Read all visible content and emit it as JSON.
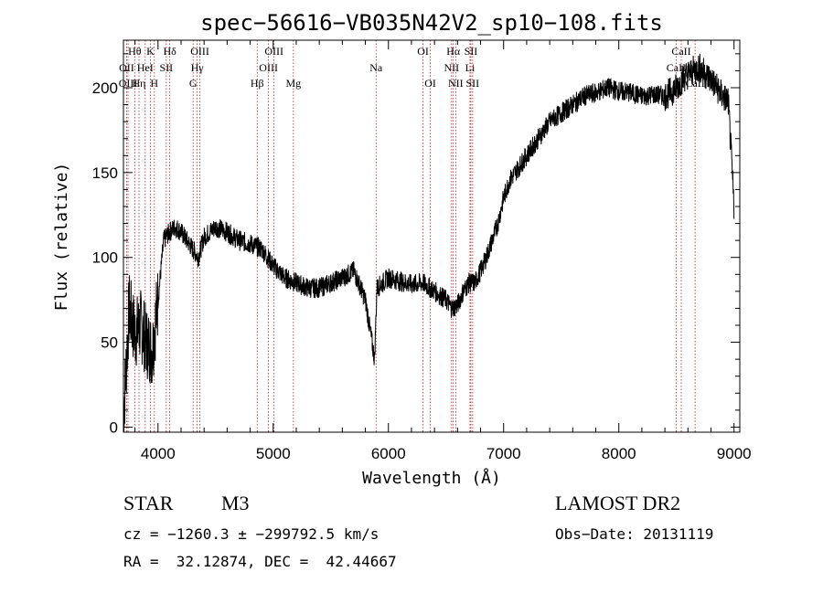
{
  "chart_data": {
    "type": "line",
    "title": "spec−56616−VB035N42V2_sp10−108.fits",
    "xlabel": "Wavelength (Å)",
    "ylabel": "Flux (relative)",
    "xlim": [
      3700,
      9050
    ],
    "ylim": [
      -3,
      228
    ],
    "xticks": [
      4000,
      5000,
      6000,
      7000,
      8000,
      9000
    ],
    "yticks": [
      0,
      50,
      100,
      150,
      200
    ],
    "grid": false,
    "legend": "none",
    "series": [
      {
        "x": [
          3700,
          3750,
          3800,
          3850,
          3900,
          3950,
          4000,
          4050,
          4100,
          4150,
          4200,
          4250,
          4300,
          4350,
          4400,
          4450,
          4500,
          4600,
          4700,
          4800,
          4900,
          5000,
          5100,
          5200,
          5300,
          5400,
          5500,
          5600,
          5700,
          5800,
          5880,
          5900,
          5950,
          6000,
          6100,
          6200,
          6300,
          6400,
          6500,
          6550,
          6600,
          6650,
          6700,
          6750,
          6800,
          6850,
          6900,
          6950,
          7000,
          7050,
          7100,
          7200,
          7300,
          7400,
          7500,
          7600,
          7700,
          7800,
          7900,
          8000,
          8100,
          8200,
          8300,
          8400,
          8500,
          8550,
          8600,
          8650,
          8700,
          8750,
          8800,
          8850,
          8900,
          8950,
          9000
        ],
        "values": [
          5,
          70,
          55,
          60,
          50,
          45,
          75,
          110,
          115,
          118,
          115,
          110,
          105,
          100,
          112,
          115,
          118,
          115,
          110,
          108,
          105,
          95,
          88,
          85,
          82,
          82,
          85,
          88,
          92,
          75,
          40,
          82,
          85,
          88,
          86,
          84,
          85,
          80,
          75,
          70,
          72,
          80,
          85,
          85,
          92,
          100,
          110,
          120,
          135,
          145,
          150,
          160,
          170,
          180,
          185,
          190,
          195,
          197,
          200,
          198,
          197,
          195,
          196,
          195,
          200,
          205,
          208,
          210,
          212,
          208,
          205,
          200,
          195,
          192,
          130
        ]
      }
    ],
    "lines": [
      {
        "name": "Hθ",
        "wave": 3798,
        "row": 0
      },
      {
        "name": "OII",
        "wave": 3727,
        "row": 1
      },
      {
        "name": "OIII",
        "wave": 3740,
        "row": 2
      },
      {
        "name": "K",
        "wave": 3934,
        "row": 0
      },
      {
        "name": "HeI",
        "wave": 3889,
        "row": 1
      },
      {
        "name": "Hη",
        "wave": 3835,
        "row": 2
      },
      {
        "name": "H",
        "wave": 3968,
        "row": 2
      },
      {
        "name": "Hδ",
        "wave": 4102,
        "row": 0
      },
      {
        "name": "SII",
        "wave": 4072,
        "row": 1
      },
      {
        "name": "OIII",
        "wave": 4363,
        "row": 0
      },
      {
        "name": "Hγ",
        "wave": 4340,
        "row": 1
      },
      {
        "name": "G",
        "wave": 4305,
        "row": 2
      },
      {
        "name": "Hβ",
        "wave": 4861,
        "row": 2
      },
      {
        "name": "OIII",
        "wave": 5007,
        "row": 0
      },
      {
        "name": "OIII",
        "wave": 4959,
        "row": 1
      },
      {
        "name": "Mg",
        "wave": 5175,
        "row": 2
      },
      {
        "name": "Na",
        "wave": 5893,
        "row": 1
      },
      {
        "name": "OI",
        "wave": 6300,
        "row": 0
      },
      {
        "name": "OI",
        "wave": 6364,
        "row": 2
      },
      {
        "name": "Hα",
        "wave": 6563,
        "row": 0
      },
      {
        "name": "SII",
        "wave": 6716,
        "row": 0
      },
      {
        "name": "NII",
        "wave": 6548,
        "row": 1
      },
      {
        "name": "Li",
        "wave": 6708,
        "row": 1
      },
      {
        "name": "NII",
        "wave": 6584,
        "row": 2
      },
      {
        "name": "SII",
        "wave": 6731,
        "row": 2
      },
      {
        "name": "CaII",
        "wave": 8542,
        "row": 0
      },
      {
        "name": "CaII",
        "wave": 8498,
        "row": 1
      },
      {
        "name": "CaII",
        "wave": 8662,
        "row": 2
      }
    ]
  },
  "info": {
    "type": "STAR",
    "subclass": "M3",
    "survey": "LAMOST DR2",
    "cz": "cz = −1260.3 ± −299792.5 km/s",
    "obs_date": "Obs−Date: 20131119",
    "coords": "RA =  32.12874, DEC =  42.44667"
  },
  "colors": {
    "spectrum": "#000000",
    "line_markers": "#b22222"
  }
}
